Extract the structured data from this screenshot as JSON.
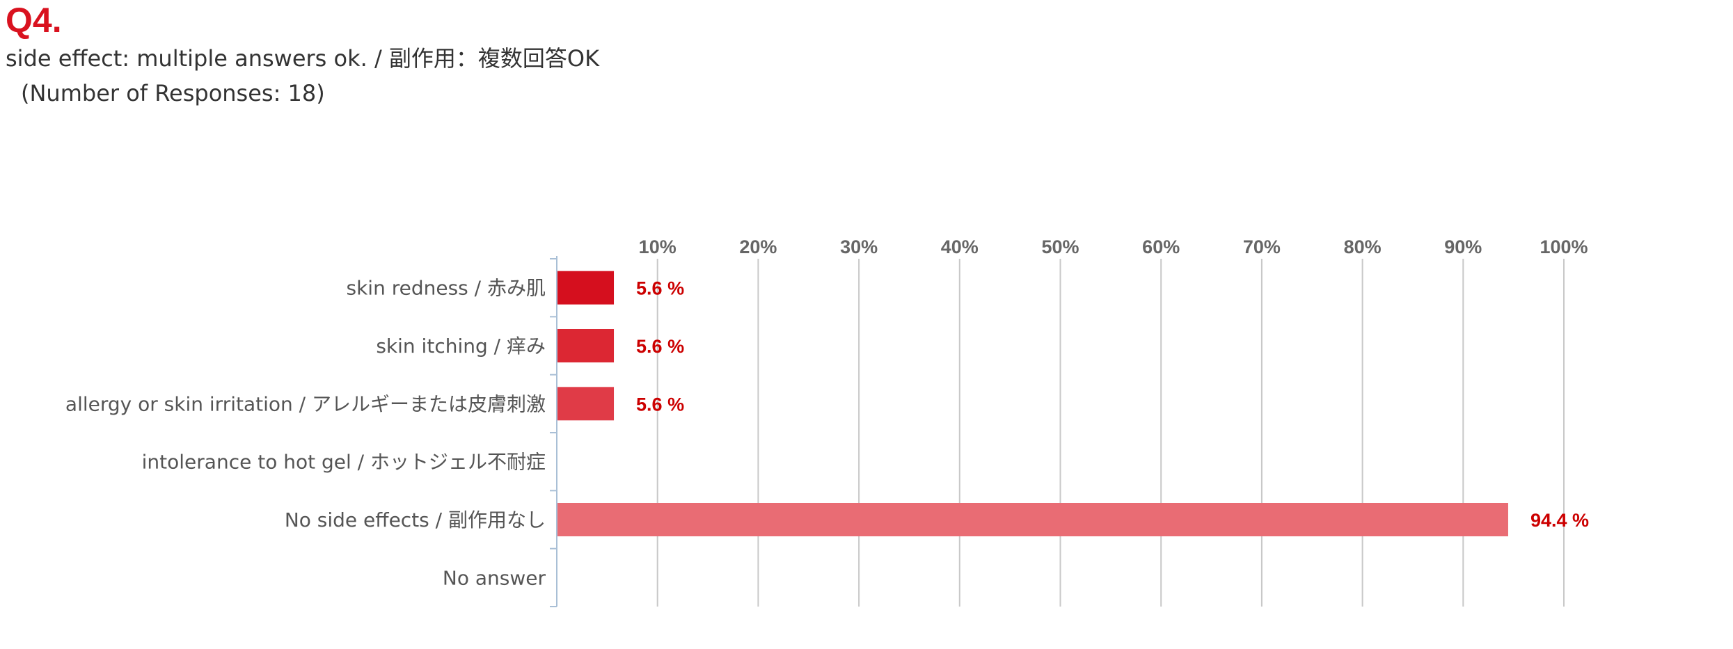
{
  "question": {
    "number": "Q4.",
    "title": "side effect: multiple answers ok. / 副作用：複数回答OK",
    "responses": "(Number of Responses: 18)"
  },
  "chart_data": {
    "type": "bar",
    "orientation": "horizontal",
    "categories": [
      "skin redness / 赤み肌",
      "skin itching / 痒み",
      "allergy or skin irritation / アレルギーまたは皮膚刺激",
      "intolerance to hot gel / ホットジェル不耐症",
      "No side effects / 副作用なし",
      "No answer"
    ],
    "values": [
      5.6,
      5.6,
      5.6,
      null,
      94.4,
      null
    ],
    "value_labels": [
      "5.6 %",
      "5.6 %",
      "5.6 %",
      "",
      "94.4 %",
      ""
    ],
    "bar_colors": [
      "#d50f1e",
      "#dc2733",
      "#e03b47",
      "#e5525c",
      "#e96c74",
      "#ed858c"
    ],
    "xlim": [
      0,
      100
    ],
    "x_ticks": [
      "10%",
      "20%",
      "30%",
      "40%",
      "50%",
      "60%",
      "70%",
      "80%",
      "90%",
      "100%"
    ],
    "x_tick_values": [
      10,
      20,
      30,
      40,
      50,
      60,
      70,
      80,
      90,
      100
    ],
    "grid": true,
    "grid_color": "#c8c8c8",
    "axis_color": "#a9bfd6",
    "value_label_color": "#cc0000",
    "title_color": "#d9121f"
  }
}
